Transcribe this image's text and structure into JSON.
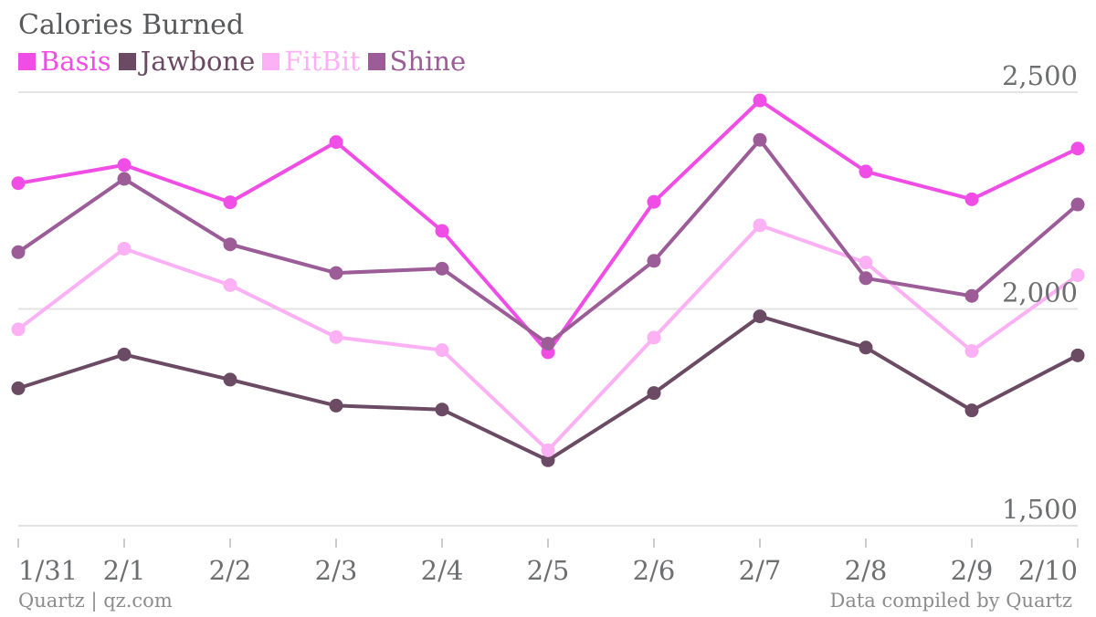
{
  "chart_data": {
    "type": "line",
    "title": "Calories Burned",
    "categories": [
      "1/31",
      "2/1",
      "2/2",
      "2/3",
      "2/4",
      "2/5",
      "2/6",
      "2/7",
      "2/8",
      "2/9",
      "2/10"
    ],
    "series": [
      {
        "name": "Basis",
        "color": "#f04de6",
        "values": [
          2290,
          2332,
          2246,
          2385,
          2180,
          1900,
          2247,
          2481,
          2317,
          2253,
          2370
        ]
      },
      {
        "name": "Jawbone",
        "color": "#6b4a63",
        "values": [
          1817,
          1895,
          1837,
          1777,
          1768,
          1651,
          1806,
          1983,
          1911,
          1766,
          1893
        ]
      },
      {
        "name": "FitBit",
        "color": "#fbb1f3",
        "values": [
          1953,
          2139,
          2055,
          1935,
          1905,
          1674,
          1934,
          2193,
          2107,
          1903,
          2078
        ]
      },
      {
        "name": "Shine",
        "color": "#9c5c98",
        "values": [
          2131,
          2300,
          2149,
          2083,
          2093,
          1920,
          2111,
          2390,
          2071,
          2030,
          2241
        ]
      }
    ],
    "ylim": [
      1500,
      2500
    ],
    "yticks": [
      {
        "value": 1500,
        "label": "1,500"
      },
      {
        "value": 2000,
        "label": "2,000"
      },
      {
        "value": 2500,
        "label": "2,500"
      }
    ],
    "grid": true,
    "legend_position": "top-left"
  },
  "footer": {
    "source": "Quartz | qz.com",
    "credit": "Data compiled by Quartz"
  }
}
